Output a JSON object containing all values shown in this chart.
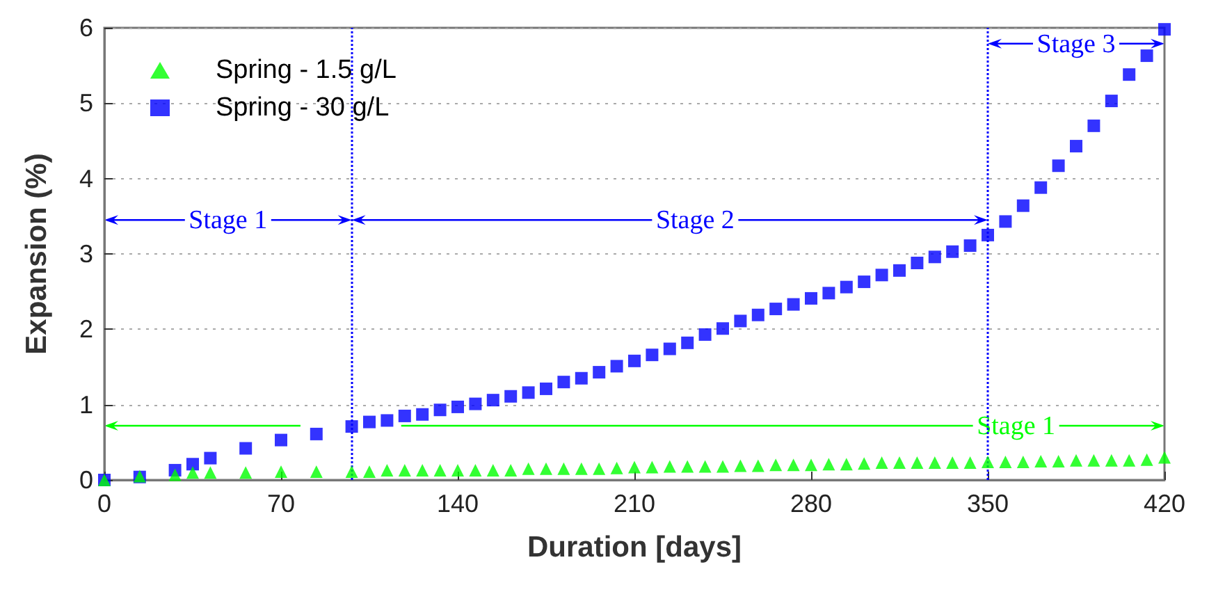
{
  "chart_data": {
    "type": "scatter",
    "xlabel": "Duration [days]",
    "ylabel": "Expansion (%)",
    "x": [
      0,
      14,
      28,
      35,
      42,
      56,
      70,
      84,
      98,
      105,
      112,
      119,
      126,
      133,
      140,
      147,
      154,
      161,
      168,
      175,
      182,
      189,
      196,
      203,
      210,
      217,
      224,
      231,
      238,
      245,
      252,
      259,
      266,
      273,
      280,
      287,
      294,
      301,
      308,
      315,
      322,
      329,
      336,
      343,
      350,
      357,
      364,
      371,
      378,
      385,
      392,
      399,
      406,
      413,
      420
    ],
    "series": [
      {
        "name": "Spring - 1.5 g/L",
        "color": "#00ff00",
        "marker": "triangle",
        "values": [
          0.0,
          0.05,
          0.07,
          0.1,
          0.1,
          0.1,
          0.11,
          0.11,
          0.11,
          0.11,
          0.13,
          0.13,
          0.13,
          0.13,
          0.13,
          0.13,
          0.13,
          0.13,
          0.15,
          0.15,
          0.15,
          0.15,
          0.15,
          0.16,
          0.17,
          0.17,
          0.18,
          0.18,
          0.18,
          0.18,
          0.19,
          0.19,
          0.2,
          0.2,
          0.2,
          0.21,
          0.21,
          0.22,
          0.23,
          0.23,
          0.23,
          0.23,
          0.23,
          0.23,
          0.24,
          0.24,
          0.24,
          0.25,
          0.25,
          0.26,
          0.26,
          0.26,
          0.26,
          0.27,
          0.3
        ]
      },
      {
        "name": "Spring - 30 g/L",
        "color": "#0000ff",
        "marker": "square",
        "values": [
          0.0,
          0.04,
          0.13,
          0.21,
          0.29,
          0.42,
          0.53,
          0.61,
          0.71,
          0.77,
          0.79,
          0.85,
          0.87,
          0.93,
          0.97,
          1.01,
          1.06,
          1.11,
          1.16,
          1.21,
          1.3,
          1.35,
          1.43,
          1.51,
          1.58,
          1.66,
          1.74,
          1.82,
          1.93,
          2.01,
          2.11,
          2.19,
          2.27,
          2.33,
          2.41,
          2.48,
          2.56,
          2.63,
          2.72,
          2.78,
          2.88,
          2.96,
          3.03,
          3.11,
          3.25,
          3.43,
          3.64,
          3.88,
          4.17,
          4.43,
          4.7,
          5.03,
          5.38,
          5.63,
          5.98
        ]
      }
    ],
    "xlim": [
      0,
      420
    ],
    "xticks": [
      0,
      70,
      140,
      210,
      280,
      350,
      420
    ],
    "ylim": [
      0,
      6
    ],
    "yticks": [
      0,
      1,
      2,
      3,
      4,
      5,
      6
    ],
    "grid": "y",
    "legend": "top left",
    "ref_lines": [
      {
        "axis": "x",
        "value": 98,
        "color": "#0000ff",
        "line_style": "dotted"
      },
      {
        "axis": "x",
        "value": 350,
        "color": "#0000ff",
        "line_style": "dotted"
      }
    ],
    "annotations": [
      "Stage 1",
      "Stage 2",
      "Stage 3",
      "Stage 1"
    ]
  }
}
